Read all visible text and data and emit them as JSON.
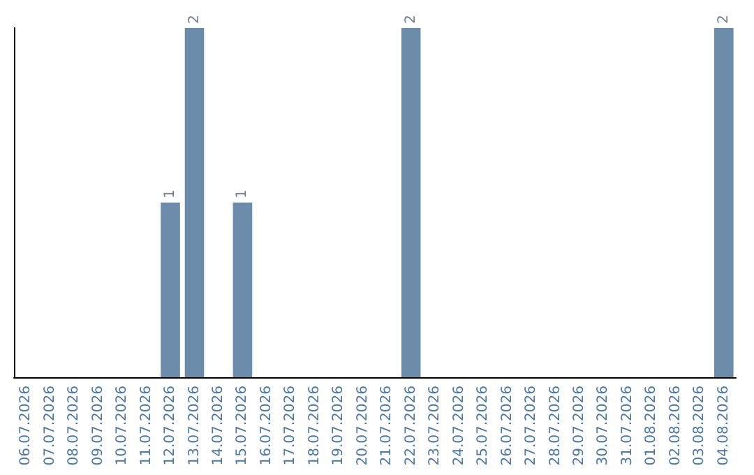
{
  "chart_data": {
    "type": "bar",
    "categories": [
      "06.07.2026",
      "07.07.2026",
      "08.07.2026",
      "09.07.2026",
      "10.07.2026",
      "11.07.2026",
      "12.07.2026",
      "13.07.2026",
      "14.07.2026",
      "15.07.2026",
      "16.07.2026",
      "17.07.2026",
      "18.07.2026",
      "19.07.2026",
      "20.07.2026",
      "21.07.2026",
      "22.07.2026",
      "23.07.2026",
      "24.07.2026",
      "25.07.2026",
      "26.07.2026",
      "27.07.2026",
      "28.07.2026",
      "29.07.2026",
      "30.07.2026",
      "31.07.2026",
      "01.08.2026",
      "02.08.2026",
      "03.08.2026",
      "04.08.2026"
    ],
    "values": [
      0,
      0,
      0,
      0,
      0,
      0,
      1,
      2,
      0,
      1,
      0,
      0,
      0,
      0,
      0,
      0,
      2,
      0,
      0,
      0,
      0,
      0,
      0,
      0,
      0,
      0,
      0,
      0,
      0,
      2
    ],
    "value_labels": [
      null,
      null,
      null,
      null,
      null,
      null,
      "1",
      "2",
      null,
      "1",
      null,
      null,
      null,
      null,
      null,
      null,
      "2",
      null,
      null,
      null,
      null,
      null,
      null,
      null,
      null,
      null,
      null,
      null,
      null,
      "2"
    ],
    "color": "#6a8caa",
    "tick_labels": "x"
  }
}
